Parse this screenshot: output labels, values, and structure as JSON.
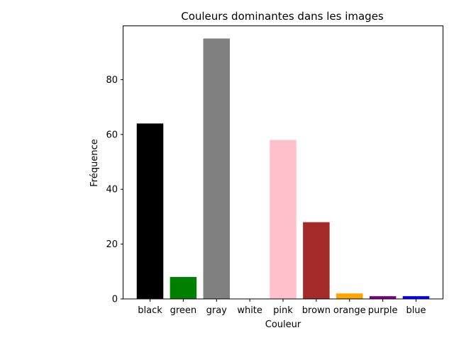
{
  "chart_data": {
    "type": "bar",
    "title": "Couleurs dominantes dans les images",
    "xlabel": "Couleur",
    "ylabel": "Fréquence",
    "categories": [
      "black",
      "green",
      "gray",
      "white",
      "pink",
      "brown",
      "orange",
      "purple",
      "blue"
    ],
    "values": [
      64,
      8,
      95,
      0,
      58,
      28,
      2,
      1,
      1
    ],
    "bar_colors": [
      "#000000",
      "#008000",
      "#808080",
      "#ffffff",
      "#ffc0cb",
      "#a52a2a",
      "#ffa500",
      "#800080",
      "#0000ff"
    ],
    "ylim": [
      0,
      99.75
    ],
    "yticks": [
      0,
      20,
      40,
      60,
      80
    ],
    "grid": false
  }
}
